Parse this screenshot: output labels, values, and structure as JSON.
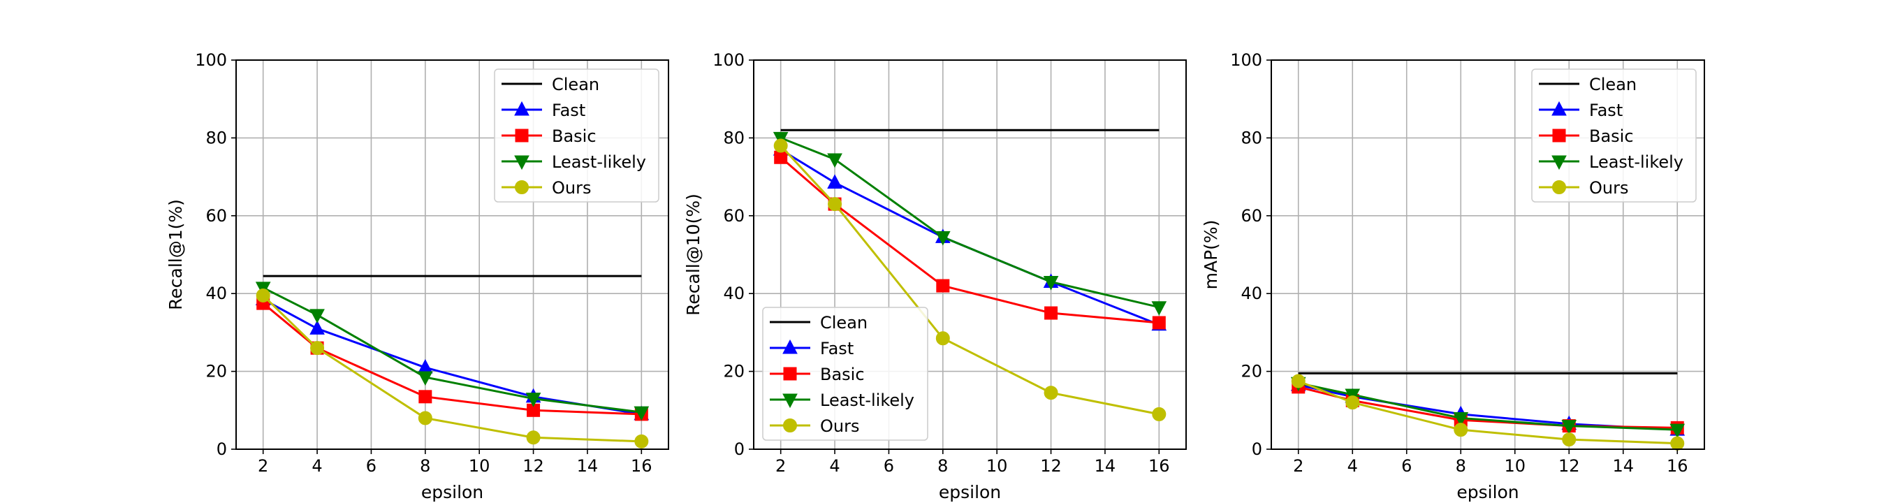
{
  "chart_data": [
    {
      "type": "line",
      "title": "",
      "xlabel": "epsilon",
      "ylabel": "Recall@1(%)",
      "xlim": [
        1,
        17
      ],
      "ylim": [
        0,
        100
      ],
      "xticks": [
        2,
        4,
        6,
        8,
        10,
        12,
        14,
        16
      ],
      "yticks": [
        0,
        20,
        40,
        60,
        80,
        100
      ],
      "grid": true,
      "legend": "top-right",
      "series": [
        {
          "name": "Clean",
          "x": [
            2,
            16
          ],
          "values": [
            44.5,
            44.5
          ],
          "color": "#000000",
          "marker": "none"
        },
        {
          "name": "Fast",
          "x": [
            2,
            4,
            8,
            12,
            16
          ],
          "values": [
            38.5,
            31,
            21,
            13.5,
            9
          ],
          "color": "#0000ff",
          "marker": "triangle-up"
        },
        {
          "name": "Basic",
          "x": [
            2,
            4,
            8,
            12,
            16
          ],
          "values": [
            37.5,
            26,
            13.5,
            10,
            9
          ],
          "color": "#ff0000",
          "marker": "square"
        },
        {
          "name": "Least-likely",
          "x": [
            2,
            4,
            8,
            12,
            16
          ],
          "values": [
            41.5,
            34.5,
            18.5,
            13,
            9.5
          ],
          "color": "#008000",
          "marker": "triangle-down"
        },
        {
          "name": "Ours",
          "x": [
            2,
            4,
            8,
            12,
            16
          ],
          "values": [
            39.5,
            26,
            8,
            3,
            2
          ],
          "color": "#bfbf00",
          "marker": "circle"
        }
      ]
    },
    {
      "type": "line",
      "title": "",
      "xlabel": "epsilon",
      "ylabel": "Recall@10(%)",
      "xlim": [
        1,
        17
      ],
      "ylim": [
        0,
        100
      ],
      "xticks": [
        2,
        4,
        6,
        8,
        10,
        12,
        14,
        16
      ],
      "yticks": [
        0,
        20,
        40,
        60,
        80,
        100
      ],
      "grid": true,
      "legend": "bottom-left",
      "series": [
        {
          "name": "Clean",
          "x": [
            2,
            16
          ],
          "values": [
            82,
            82
          ],
          "color": "#000000",
          "marker": "none"
        },
        {
          "name": "Fast",
          "x": [
            2,
            4,
            8,
            12,
            16
          ],
          "values": [
            77,
            68.5,
            54.5,
            43,
            32
          ],
          "color": "#0000ff",
          "marker": "triangle-up"
        },
        {
          "name": "Basic",
          "x": [
            2,
            4,
            8,
            12,
            16
          ],
          "values": [
            75,
            63,
            42,
            35,
            32.5
          ],
          "color": "#ff0000",
          "marker": "square"
        },
        {
          "name": "Least-likely",
          "x": [
            2,
            4,
            8,
            12,
            16
          ],
          "values": [
            80,
            74.5,
            54.5,
            43,
            36.5
          ],
          "color": "#008000",
          "marker": "triangle-down"
        },
        {
          "name": "Ours",
          "x": [
            2,
            4,
            8,
            12,
            16
          ],
          "values": [
            78,
            63,
            28.5,
            14.5,
            9
          ],
          "color": "#bfbf00",
          "marker": "circle"
        }
      ]
    },
    {
      "type": "line",
      "title": "",
      "xlabel": "epsilon",
      "ylabel": "mAP(%)",
      "xlim": [
        1,
        17
      ],
      "ylim": [
        0,
        100
      ],
      "xticks": [
        2,
        4,
        6,
        8,
        10,
        12,
        14,
        16
      ],
      "yticks": [
        0,
        20,
        40,
        60,
        80,
        100
      ],
      "grid": true,
      "legend": "top-right",
      "series": [
        {
          "name": "Clean",
          "x": [
            2,
            16
          ],
          "values": [
            19.5,
            19.5
          ],
          "color": "#000000",
          "marker": "none"
        },
        {
          "name": "Fast",
          "x": [
            2,
            4,
            8,
            12,
            16
          ],
          "values": [
            16.5,
            13.5,
            9,
            6.5,
            5
          ],
          "color": "#0000ff",
          "marker": "triangle-up"
        },
        {
          "name": "Basic",
          "x": [
            2,
            4,
            8,
            12,
            16
          ],
          "values": [
            16,
            12.5,
            7.5,
            6,
            5.5
          ],
          "color": "#ff0000",
          "marker": "square"
        },
        {
          "name": "Least-likely",
          "x": [
            2,
            4,
            8,
            12,
            16
          ],
          "values": [
            17,
            14,
            8,
            6,
            5
          ],
          "color": "#008000",
          "marker": "triangle-down"
        },
        {
          "name": "Ours",
          "x": [
            2,
            4,
            8,
            12,
            16
          ],
          "values": [
            17.5,
            12,
            5,
            2.5,
            1.5
          ],
          "color": "#bfbf00",
          "marker": "circle"
        }
      ]
    }
  ]
}
